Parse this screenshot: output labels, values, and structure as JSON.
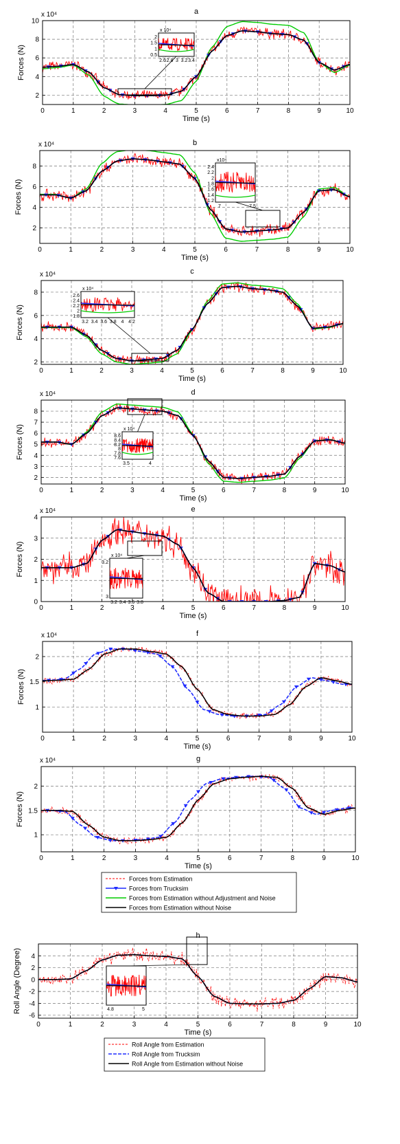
{
  "colors": {
    "estimation": "#ff0000",
    "trucksim": "#1f2bff",
    "no_adjust": "#00cc00",
    "no_noise": "#000000",
    "grid": "#777777",
    "zoom_box": "#000000"
  },
  "chart_data": [
    {
      "id": "a",
      "type": "line",
      "title": "a",
      "xlabel": "Time (s)",
      "ylabel": "Forces (N)",
      "exponent": "x 10⁴",
      "xlim": [
        0,
        10
      ],
      "ylim": [
        1,
        10
      ],
      "xticks": [
        0,
        1,
        2,
        3,
        4,
        5,
        6,
        7,
        8,
        9,
        10
      ],
      "yticks": [
        2,
        4,
        6,
        8,
        10
      ],
      "yticklabels": [
        "2",
        "4",
        "6",
        "8",
        "10"
      ],
      "grid": true,
      "base": [
        [
          0,
          5
        ],
        [
          0.5,
          5.1
        ],
        [
          1,
          5.3
        ],
        [
          1.5,
          4.5
        ],
        [
          2,
          2.8
        ],
        [
          2.5,
          2.05
        ],
        [
          3,
          1.95
        ],
        [
          3.5,
          1.95
        ],
        [
          4,
          2.0
        ],
        [
          4.5,
          2.4
        ],
        [
          5,
          4.0
        ],
        [
          5.5,
          6.7
        ],
        [
          6,
          8.4
        ],
        [
          6.5,
          8.9
        ],
        [
          7,
          8.8
        ],
        [
          7.5,
          8.6
        ],
        [
          8,
          8.5
        ],
        [
          8.5,
          7.9
        ],
        [
          9,
          5.5
        ],
        [
          9.5,
          4.7
        ],
        [
          10,
          5.3
        ]
      ],
      "green_delta": 1.0,
      "noise": 0.45,
      "inset": {
        "labels": [
          "x 10⁴",
          "2",
          "1.5",
          "1",
          "0.5",
          "2.6",
          "2.8",
          "3",
          "3.2",
          "3.4"
        ]
      }
    },
    {
      "id": "b",
      "type": "line",
      "title": "b",
      "xlabel": "Time (s)",
      "ylabel": "Forces (N)",
      "exponent": "x 10⁴",
      "xlim": [
        0,
        10
      ],
      "ylim": [
        0.5,
        9.5
      ],
      "xticks": [
        0,
        1,
        2,
        3,
        4,
        5,
        6,
        7,
        8,
        9,
        10
      ],
      "yticks": [
        2,
        4,
        6,
        8
      ],
      "yticklabels": [
        "2",
        "4",
        "6",
        "8"
      ],
      "grid": true,
      "base": [
        [
          0,
          5.2
        ],
        [
          0.5,
          5.2
        ],
        [
          1,
          4.9
        ],
        [
          1.5,
          5.6
        ],
        [
          2,
          7.5
        ],
        [
          2.5,
          8.5
        ],
        [
          3,
          8.7
        ],
        [
          3.5,
          8.6
        ],
        [
          4,
          8.4
        ],
        [
          4.5,
          8.2
        ],
        [
          5,
          6.8
        ],
        [
          5.5,
          3.8
        ],
        [
          6,
          1.9
        ],
        [
          6.5,
          1.6
        ],
        [
          7,
          1.7
        ],
        [
          7.5,
          1.8
        ],
        [
          8,
          2.0
        ],
        [
          8.5,
          3.5
        ],
        [
          9,
          5.6
        ],
        [
          9.5,
          5.7
        ],
        [
          10,
          5.0
        ]
      ],
      "green_delta": 0.9,
      "noise": 0.45,
      "inset": {
        "labels": [
          "x10⁴",
          "2.4",
          "2.2",
          "2",
          "1.8",
          "1.6",
          "1.4",
          "1.2",
          "7",
          "7.5"
        ]
      }
    },
    {
      "id": "c",
      "type": "line",
      "title": "c",
      "xlabel": "Time (s)",
      "ylabel": "Forces (N)",
      "exponent": "x 10⁴",
      "xlim": [
        0,
        10
      ],
      "ylim": [
        1.8,
        9
      ],
      "xticks": [
        0,
        1,
        2,
        3,
        4,
        5,
        6,
        7,
        8,
        9,
        10
      ],
      "yticks": [
        2,
        4,
        6,
        8
      ],
      "yticklabels": [
        "2",
        "4",
        "6",
        "8"
      ],
      "grid": true,
      "base": [
        [
          0,
          5
        ],
        [
          0.5,
          5
        ],
        [
          1,
          5
        ],
        [
          1.5,
          4.3
        ],
        [
          2,
          3.0
        ],
        [
          2.5,
          2.3
        ],
        [
          3,
          2.1
        ],
        [
          3.5,
          2.2
        ],
        [
          4,
          2.3
        ],
        [
          4.5,
          3.0
        ],
        [
          5,
          4.8
        ],
        [
          5.5,
          7.0
        ],
        [
          6,
          8.4
        ],
        [
          6.5,
          8.5
        ],
        [
          7,
          8.3
        ],
        [
          7.5,
          8.2
        ],
        [
          8,
          8.0
        ],
        [
          8.5,
          6.8
        ],
        [
          9,
          4.9
        ],
        [
          9.5,
          5.0
        ],
        [
          10,
          5.3
        ]
      ],
      "green_delta": 0.3,
      "noise": 0.35,
      "inset": {
        "labels": [
          "x 10⁴",
          "2.6",
          "2.4",
          "2.2",
          "2",
          "1.8",
          "3.2",
          "3.4",
          "3.6",
          "3.8",
          "4",
          "4.2"
        ]
      }
    },
    {
      "id": "d",
      "type": "line",
      "title": "d",
      "xlabel": "Time (s)",
      "ylabel": "Forces (N)",
      "exponent": "x 10⁴",
      "xlim": [
        0,
        10
      ],
      "ylim": [
        1.4,
        9
      ],
      "xticks": [
        0,
        1,
        2,
        3,
        4,
        5,
        6,
        7,
        8,
        9,
        10
      ],
      "yticks": [
        2,
        3,
        4,
        5,
        6,
        7,
        8
      ],
      "yticklabels": [
        "2",
        "3",
        "4",
        "5",
        "6",
        "7",
        "8"
      ],
      "grid": true,
      "base": [
        [
          0,
          5.2
        ],
        [
          0.5,
          5.2
        ],
        [
          1,
          5.0
        ],
        [
          1.5,
          6.0
        ],
        [
          2,
          7.6
        ],
        [
          2.5,
          8.3
        ],
        [
          3,
          8.2
        ],
        [
          3.5,
          8.1
        ],
        [
          4,
          8.0
        ],
        [
          4.5,
          7.6
        ],
        [
          5,
          5.8
        ],
        [
          5.5,
          3.5
        ],
        [
          6,
          2.0
        ],
        [
          6.5,
          1.9
        ],
        [
          7,
          2.0
        ],
        [
          7.5,
          2.1
        ],
        [
          8,
          2.3
        ],
        [
          8.5,
          3.9
        ],
        [
          9,
          5.3
        ],
        [
          9.5,
          5.4
        ],
        [
          10,
          5.1
        ]
      ],
      "green_delta": 0.35,
      "noise": 0.35,
      "inset": {
        "labels": [
          "x 10⁴",
          "8.6",
          "8.4",
          "8.2",
          "8",
          "7.8",
          "7.6",
          "3.5",
          "4"
        ]
      }
    },
    {
      "id": "e",
      "type": "line",
      "title": "e",
      "xlabel": "Time (s)",
      "ylabel": "Forces (N)",
      "exponent": "x 10⁴",
      "xlim": [
        0,
        10
      ],
      "ylim": [
        0,
        4
      ],
      "xticks": [
        0,
        1,
        2,
        3,
        4,
        5,
        6,
        7,
        8,
        9,
        10
      ],
      "yticks": [
        0,
        1,
        2,
        3,
        4
      ],
      "yticklabels": [
        "0",
        "1",
        "2",
        "3",
        "4"
      ],
      "grid": true,
      "base": [
        [
          0,
          1.6
        ],
        [
          0.5,
          1.6
        ],
        [
          1,
          1.6
        ],
        [
          1.5,
          1.8
        ],
        [
          2,
          2.9
        ],
        [
          2.5,
          3.4
        ],
        [
          3,
          3.3
        ],
        [
          3.5,
          3.2
        ],
        [
          4,
          3.1
        ],
        [
          4.5,
          2.7
        ],
        [
          5,
          1.6
        ],
        [
          5.5,
          0.4
        ],
        [
          6,
          0.0
        ],
        [
          6.5,
          0.0
        ],
        [
          7,
          0.0
        ],
        [
          7.5,
          0.0
        ],
        [
          8,
          0.05
        ],
        [
          8.5,
          0.2
        ],
        [
          9,
          1.8
        ],
        [
          9.5,
          1.7
        ],
        [
          10,
          1.4
        ]
      ],
      "green_delta": 0,
      "noise": 0.55,
      "inset": {
        "labels": [
          "x 10⁴",
          "3.2",
          "3",
          "3.2",
          "3.4",
          "3.6",
          "3.8"
        ]
      }
    },
    {
      "id": "f",
      "type": "line",
      "title": "f",
      "xlabel": "Time (s)",
      "ylabel": "Forces (N)",
      "exponent": "x 10⁴",
      "xlim": [
        0,
        10
      ],
      "ylim": [
        0.5,
        2.3
      ],
      "xticks": [
        0,
        1,
        2,
        3,
        4,
        5,
        6,
        7,
        8,
        9,
        10
      ],
      "yticks": [
        1,
        1.5,
        2
      ],
      "yticklabels": [
        "1",
        "1.5",
        "2"
      ],
      "grid": true,
      "base": [
        [
          0,
          1.52
        ],
        [
          0.5,
          1.53
        ],
        [
          1,
          1.55
        ],
        [
          1.5,
          1.75
        ],
        [
          2,
          2.05
        ],
        [
          2.5,
          2.15
        ],
        [
          3,
          2.15
        ],
        [
          3.5,
          2.1
        ],
        [
          4,
          2.05
        ],
        [
          4.5,
          1.8
        ],
        [
          5,
          1.35
        ],
        [
          5.5,
          0.95
        ],
        [
          6,
          0.85
        ],
        [
          6.5,
          0.82
        ],
        [
          7,
          0.82
        ],
        [
          7.5,
          0.85
        ],
        [
          8,
          1.05
        ],
        [
          8.5,
          1.4
        ],
        [
          9,
          1.58
        ],
        [
          9.5,
          1.52
        ],
        [
          10,
          1.45
        ]
      ],
      "blue_shift": -0.3,
      "green_delta": 0,
      "noise": 0.05
    },
    {
      "id": "g",
      "type": "line",
      "title": "g",
      "xlabel": "Time (s)",
      "ylabel": "Forces (N)",
      "exponent": "x 10⁴",
      "xlim": [
        0,
        10
      ],
      "ylim": [
        0.65,
        2.4
      ],
      "xticks": [
        0,
        1,
        2,
        3,
        4,
        5,
        6,
        7,
        8,
        9,
        10
      ],
      "yticks": [
        1,
        1.5,
        2
      ],
      "yticklabels": [
        "1",
        "1.5",
        "2"
      ],
      "grid": true,
      "base": [
        [
          0,
          1.5
        ],
        [
          0.5,
          1.5
        ],
        [
          1,
          1.48
        ],
        [
          1.5,
          1.2
        ],
        [
          2,
          0.95
        ],
        [
          2.5,
          0.88
        ],
        [
          3,
          0.88
        ],
        [
          3.5,
          0.9
        ],
        [
          4,
          0.95
        ],
        [
          4.5,
          1.25
        ],
        [
          5,
          1.72
        ],
        [
          5.5,
          2.05
        ],
        [
          6,
          2.15
        ],
        [
          6.5,
          2.18
        ],
        [
          7,
          2.2
        ],
        [
          7.5,
          2.18
        ],
        [
          8,
          1.95
        ],
        [
          8.5,
          1.55
        ],
        [
          9,
          1.42
        ],
        [
          9.5,
          1.5
        ],
        [
          10,
          1.55
        ]
      ],
      "blue_shift": -0.25,
      "green_delta": 0,
      "noise": 0.06
    },
    {
      "id": "h",
      "type": "line",
      "title": "h",
      "xlabel": "Time (s)",
      "ylabel": "Roll Angle (Degree)",
      "exponent": "",
      "xlim": [
        0,
        10
      ],
      "ylim": [
        -6.5,
        6
      ],
      "xticks": [
        0,
        1,
        2,
        3,
        4,
        5,
        6,
        7,
        8,
        9,
        10
      ],
      "yticks": [
        -6,
        -4,
        -2,
        0,
        2,
        4
      ],
      "yticklabels": [
        "-6",
        "-4",
        "-2",
        "0",
        "2",
        "4"
      ],
      "grid": true,
      "base": [
        [
          0,
          0
        ],
        [
          0.5,
          0
        ],
        [
          1,
          0.1
        ],
        [
          1.5,
          1.5
        ],
        [
          2,
          3.3
        ],
        [
          2.5,
          4.1
        ],
        [
          3,
          4.2
        ],
        [
          3.5,
          4.0
        ],
        [
          4,
          3.9
        ],
        [
          4.5,
          3.5
        ],
        [
          5,
          0.5
        ],
        [
          5.5,
          -2.8
        ],
        [
          6,
          -4.0
        ],
        [
          6.5,
          -4.1
        ],
        [
          7,
          -4.1
        ],
        [
          7.5,
          -4.0
        ],
        [
          8,
          -3.5
        ],
        [
          8.5,
          -1.5
        ],
        [
          9,
          0.5
        ],
        [
          9.5,
          0.3
        ],
        [
          10,
          -0.4
        ]
      ],
      "blue_shift": 0,
      "green_delta": 0,
      "noise": 0.9,
      "inset": {
        "labels": [
          "4.8",
          "5"
        ]
      }
    }
  ],
  "legends": [
    {
      "id": "forces",
      "entries": [
        {
          "label": "Forces from Estimation",
          "style": "dash",
          "color": "#ff0000"
        },
        {
          "label": "Forces from Trucksim",
          "style": "marker",
          "color": "#1f2bff"
        },
        {
          "label": "Forces from Estimation without Adjustment and Noise",
          "style": "solid",
          "color": "#00cc00"
        },
        {
          "label": "Forces from Estimation without Noise",
          "style": "solid",
          "color": "#000000"
        }
      ]
    },
    {
      "id": "roll",
      "entries": [
        {
          "label": "Roll Angle from Estimation",
          "style": "dash",
          "color": "#ff0000"
        },
        {
          "label": "Roll Angle from Trucksim",
          "style": "bluedash",
          "color": "#1f2bff"
        },
        {
          "label": "Roll Angle from Estimation without Noise",
          "style": "solid",
          "color": "#000000"
        }
      ]
    }
  ]
}
